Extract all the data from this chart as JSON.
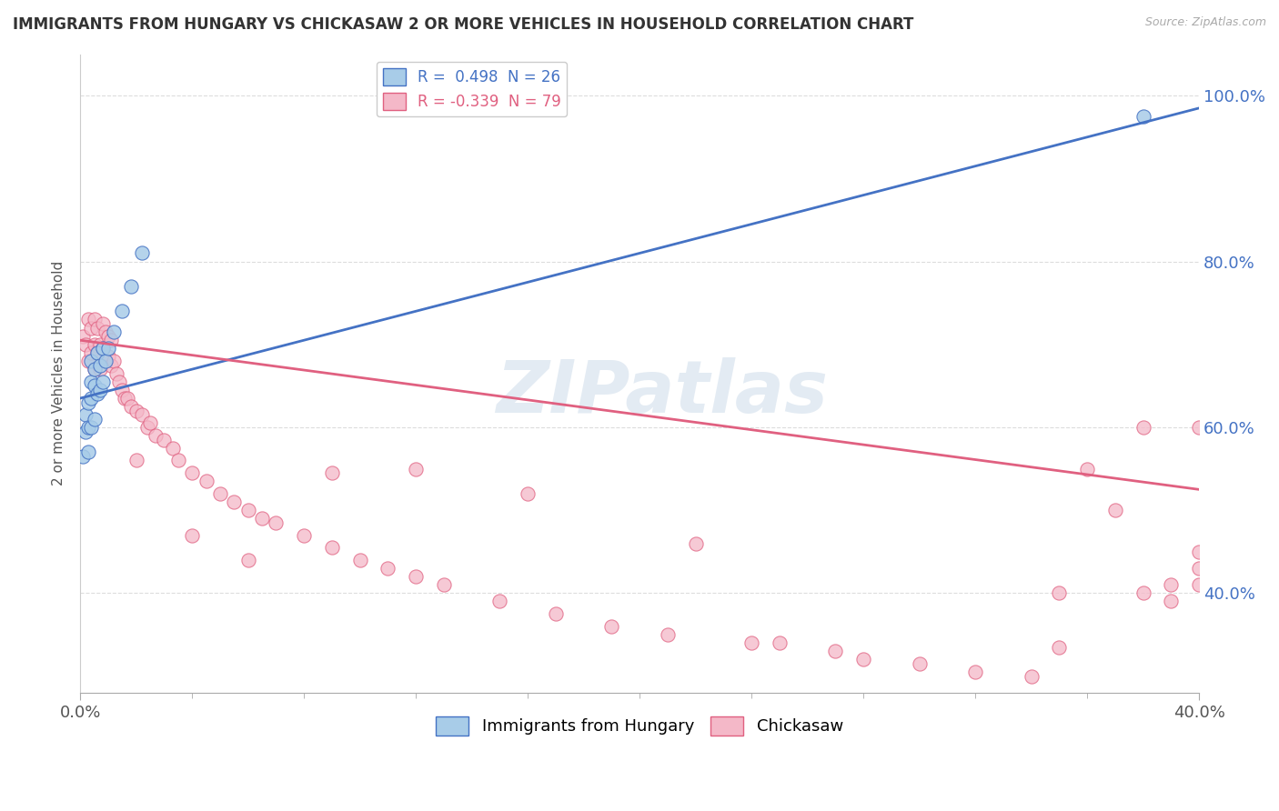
{
  "title": "IMMIGRANTS FROM HUNGARY VS CHICKASAW 2 OR MORE VEHICLES IN HOUSEHOLD CORRELATION CHART",
  "source": "Source: ZipAtlas.com",
  "ylabel": "2 or more Vehicles in Household",
  "blue_R": 0.498,
  "blue_N": 26,
  "pink_R": -0.339,
  "pink_N": 79,
  "blue_color": "#a8cce8",
  "pink_color": "#f4b8c8",
  "blue_line_color": "#4472c4",
  "pink_line_color": "#e06080",
  "watermark": "ZIPatlas",
  "background_color": "#ffffff",
  "grid_color": "#dddddd",
  "blue_scatter_x": [
    0.001,
    0.002,
    0.002,
    0.003,
    0.003,
    0.003,
    0.004,
    0.004,
    0.004,
    0.004,
    0.005,
    0.005,
    0.005,
    0.006,
    0.006,
    0.007,
    0.007,
    0.008,
    0.008,
    0.009,
    0.01,
    0.012,
    0.015,
    0.018,
    0.022,
    0.38
  ],
  "blue_scatter_y": [
    0.565,
    0.595,
    0.615,
    0.57,
    0.6,
    0.63,
    0.6,
    0.635,
    0.655,
    0.68,
    0.61,
    0.65,
    0.67,
    0.64,
    0.69,
    0.645,
    0.675,
    0.655,
    0.695,
    0.68,
    0.695,
    0.715,
    0.74,
    0.77,
    0.81,
    0.975
  ],
  "pink_scatter_x": [
    0.001,
    0.002,
    0.003,
    0.003,
    0.004,
    0.004,
    0.005,
    0.005,
    0.005,
    0.006,
    0.006,
    0.007,
    0.007,
    0.008,
    0.008,
    0.009,
    0.009,
    0.01,
    0.01,
    0.011,
    0.011,
    0.012,
    0.013,
    0.014,
    0.015,
    0.016,
    0.017,
    0.018,
    0.02,
    0.022,
    0.024,
    0.025,
    0.027,
    0.03,
    0.033,
    0.035,
    0.04,
    0.045,
    0.05,
    0.055,
    0.06,
    0.065,
    0.07,
    0.08,
    0.09,
    0.1,
    0.11,
    0.12,
    0.13,
    0.15,
    0.17,
    0.19,
    0.21,
    0.24,
    0.25,
    0.27,
    0.28,
    0.3,
    0.32,
    0.34,
    0.35,
    0.36,
    0.37,
    0.38,
    0.38,
    0.39,
    0.39,
    0.4,
    0.4,
    0.4,
    0.4,
    0.35,
    0.22,
    0.16,
    0.12,
    0.09,
    0.06,
    0.04,
    0.02
  ],
  "pink_scatter_y": [
    0.71,
    0.7,
    0.68,
    0.73,
    0.72,
    0.69,
    0.7,
    0.67,
    0.73,
    0.69,
    0.72,
    0.7,
    0.67,
    0.695,
    0.725,
    0.68,
    0.715,
    0.685,
    0.71,
    0.675,
    0.705,
    0.68,
    0.665,
    0.655,
    0.645,
    0.635,
    0.635,
    0.625,
    0.62,
    0.615,
    0.6,
    0.605,
    0.59,
    0.585,
    0.575,
    0.56,
    0.545,
    0.535,
    0.52,
    0.51,
    0.5,
    0.49,
    0.485,
    0.47,
    0.455,
    0.44,
    0.43,
    0.42,
    0.41,
    0.39,
    0.375,
    0.36,
    0.35,
    0.34,
    0.34,
    0.33,
    0.32,
    0.315,
    0.305,
    0.3,
    0.335,
    0.55,
    0.5,
    0.6,
    0.4,
    0.39,
    0.41,
    0.6,
    0.45,
    0.43,
    0.41,
    0.4,
    0.46,
    0.52,
    0.55,
    0.545,
    0.44,
    0.47,
    0.56
  ],
  "blue_line_x": [
    0.0,
    0.4
  ],
  "blue_line_y": [
    0.635,
    0.985
  ],
  "pink_line_x": [
    0.0,
    0.4
  ],
  "pink_line_y": [
    0.705,
    0.525
  ],
  "xlim": [
    0.0,
    0.4
  ],
  "ylim": [
    0.28,
    1.05
  ],
  "ytick_positions": [
    0.4,
    0.6,
    0.8,
    1.0
  ],
  "ytick_labels": [
    "40.0%",
    "60.0%",
    "80.0%",
    "100.0%"
  ],
  "xtick_only_ends": true,
  "legend_label_blue": "Immigrants from Hungary",
  "legend_label_pink": "Chickasaw"
}
